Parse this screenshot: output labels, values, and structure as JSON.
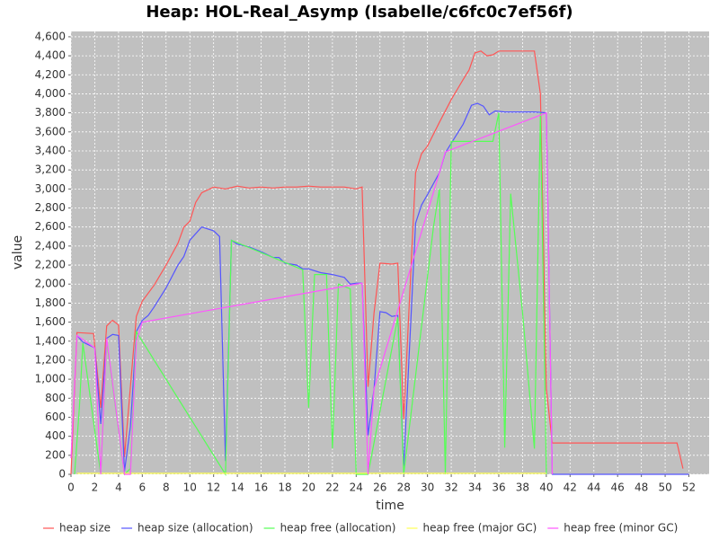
{
  "chart_data": {
    "type": "line",
    "title": "Heap: HOL-Real_Asymp (Isabelle/c6fc0c7ef56f)",
    "x_label": "time",
    "y_label": "value",
    "xlim": [
      0,
      53.7
    ],
    "ylim": [
      0,
      4656
    ],
    "xticks": [
      0,
      2,
      4,
      6,
      8,
      10,
      12,
      14,
      16,
      18,
      20,
      22,
      24,
      26,
      28,
      30,
      32,
      34,
      36,
      38,
      40,
      42,
      44,
      46,
      48,
      50,
      52
    ],
    "yticks": [
      0,
      200,
      400,
      600,
      800,
      {
        "value": 1000,
        "label": "1,000"
      },
      {
        "value": 1200,
        "label": "1,200"
      },
      {
        "value": 1400,
        "label": "1,400"
      },
      {
        "value": 1600,
        "label": "1,600"
      },
      {
        "value": 1800,
        "label": "1,800"
      },
      {
        "value": 2000,
        "label": "2,000"
      },
      {
        "value": 2200,
        "label": "2,200"
      },
      {
        "value": 2400,
        "label": "2,400"
      },
      {
        "value": 2600,
        "label": "2,600"
      },
      {
        "value": 2800,
        "label": "2,800"
      },
      {
        "value": 3000,
        "label": "3,000"
      },
      {
        "value": 3200,
        "label": "3,200"
      },
      {
        "value": 3400,
        "label": "3,400"
      },
      {
        "value": 3600,
        "label": "3,600"
      },
      {
        "value": 3800,
        "label": "3,800"
      },
      {
        "value": 4000,
        "label": "4,000"
      },
      {
        "value": 4200,
        "label": "4,200"
      },
      {
        "value": 4400,
        "label": "4,400"
      },
      {
        "value": 4600,
        "label": "4,600"
      }
    ],
    "grid": true,
    "legend": "bottom",
    "series": [
      {
        "name": "heap size",
        "color": "#ff5555",
        "x": [
          0,
          0.5,
          1.9,
          2.5,
          3,
          3.5,
          4,
          4.5,
          5.5,
          6,
          7,
          8,
          9,
          9.5,
          10,
          10.5,
          11,
          12,
          13,
          14,
          15,
          16,
          17,
          18,
          19,
          20,
          21,
          22,
          23,
          24,
          24.5,
          25,
          25.5,
          26,
          27,
          27.5,
          28,
          29,
          29.5,
          30,
          31,
          32,
          33,
          33.5,
          34,
          34.5,
          35,
          35.5,
          36,
          37,
          38,
          39,
          39.5,
          40,
          40.5,
          41,
          51,
          51.5
        ],
        "values": [
          0,
          1490,
          1480,
          700,
          1560,
          1620,
          1570,
          180,
          1660,
          1820,
          1990,
          2200,
          2430,
          2600,
          2660,
          2860,
          2960,
          3020,
          3000,
          3030,
          3010,
          3020,
          3010,
          3020,
          3020,
          3030,
          3020,
          3020,
          3020,
          3000,
          3020,
          920,
          1700,
          2220,
          2210,
          2220,
          580,
          3170,
          3370,
          3450,
          3700,
          3940,
          4150,
          4250,
          4430,
          4450,
          4400,
          4410,
          4450,
          4450,
          4450,
          4450,
          4000,
          900,
          330,
          330,
          330,
          60
        ]
      },
      {
        "name": "heap size (allocation)",
        "color": "#5555ff",
        "x": [
          0.5,
          1,
          2,
          2.5,
          3,
          3.5,
          4,
          4.5,
          5,
          5.5,
          6,
          6.5,
          7,
          8,
          9,
          9.5,
          10,
          11,
          12,
          12.5,
          13,
          13.5,
          14,
          15,
          16,
          17,
          17.5,
          18,
          19,
          19.5,
          20,
          21,
          22,
          23,
          23.5,
          24,
          24.5,
          25,
          25.5,
          26,
          26.5,
          27,
          27.5,
          28,
          29,
          29.5,
          30,
          31,
          31.5,
          33,
          33.7,
          34.2,
          34.7,
          35.2,
          35.7,
          36.5,
          38,
          39,
          40,
          40.5,
          52
        ],
        "values": [
          1460,
          1390,
          1330,
          530,
          1430,
          1470,
          1460,
          30,
          500,
          1500,
          1620,
          1670,
          1760,
          1960,
          2200,
          2290,
          2460,
          2600,
          2560,
          2500,
          140,
          2460,
          2420,
          2390,
          2340,
          2280,
          2280,
          2220,
          2200,
          2160,
          2160,
          2120,
          2100,
          2070,
          2000,
          2010,
          2010,
          410,
          900,
          1710,
          1700,
          1660,
          1670,
          80,
          2640,
          2830,
          2940,
          3170,
          3380,
          3680,
          3880,
          3900,
          3870,
          3780,
          3820,
          3810,
          3810,
          3810,
          3800,
          0,
          0
        ]
      },
      {
        "name": "heap free (allocation)",
        "color": "#55ff55",
        "x": [
          0.3,
          0.7,
          1,
          2.5,
          3,
          4.5,
          5,
          5.5,
          13,
          13.5,
          19.5,
          20,
          20.5,
          21.5,
          22,
          22.5,
          23.5,
          24,
          25,
          27.5,
          28,
          30.5,
          31,
          31.5,
          32,
          35.5,
          36,
          36.5,
          37,
          38,
          39,
          39.5,
          40
        ],
        "values": [
          0,
          700,
          1380,
          0,
          1400,
          0,
          60,
          1500,
          0,
          2460,
          2150,
          700,
          2100,
          2100,
          270,
          2000,
          1950,
          0,
          0,
          1650,
          0,
          2600,
          3000,
          0,
          3500,
          3500,
          3800,
          280,
          2950,
          1700,
          270,
          3800,
          0
        ]
      },
      {
        "name": "heap free (major GC)",
        "color": "#ffff55",
        "x": [
          0.5,
          40
        ],
        "values": [
          10,
          10
        ]
      },
      {
        "name": "heap free (minor GC)",
        "color": "#ff55ff",
        "x": [
          0,
          0.5,
          2,
          2.5,
          3,
          4.5,
          5,
          5.5,
          6,
          24.5,
          25,
          25.5,
          31,
          31.5,
          40,
          40.5
        ],
        "values": [
          170,
          1460,
          1330,
          0,
          1430,
          0,
          0,
          1400,
          1600,
          2010,
          0,
          900,
          3170,
          3390,
          3800,
          0
        ]
      }
    ]
  }
}
